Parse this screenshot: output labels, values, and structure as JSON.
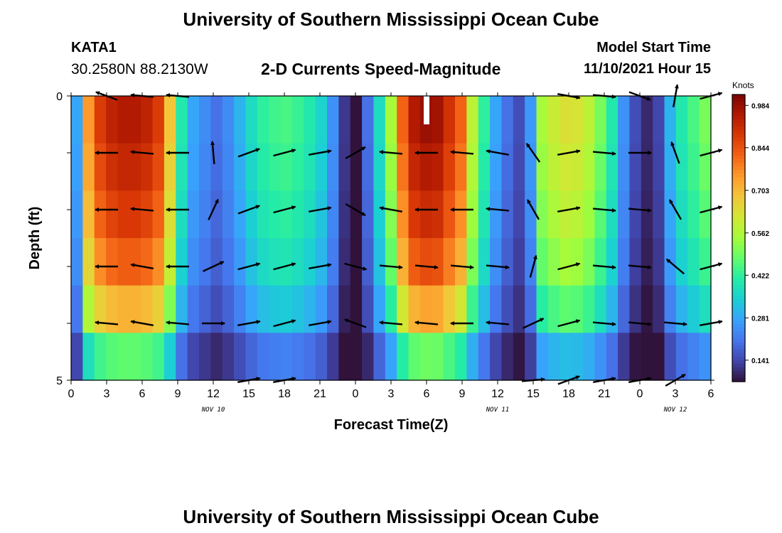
{
  "header": {
    "title": "University of Southern Mississippi Ocean Cube",
    "station": "KATA1",
    "coords": "30.2580N  88.2130W",
    "subtitle": "2-D Currents Speed-Magnitude",
    "model_start_label": "Model Start Time",
    "model_start_value": "11/10/2021 Hour 15"
  },
  "footer": {
    "title": "University of Southern Mississippi Ocean Cube"
  },
  "chart_data": {
    "type": "heatmap",
    "xlabel": "Forecast Time(Z)",
    "ylabel": "Depth (ft)",
    "x_tick_labels": [
      "0",
      "3",
      "6",
      "9",
      "12",
      "15",
      "18",
      "21",
      "0",
      "3",
      "6",
      "9",
      "12",
      "15",
      "18",
      "21",
      "0",
      "3",
      "6"
    ],
    "date_labels": [
      {
        "label": "NOV 10",
        "at_hour": 12
      },
      {
        "label": "NOV 11",
        "at_hour": 36
      },
      {
        "label": "NOV 12",
        "at_hour": 51
      }
    ],
    "xlim": [
      0,
      54
    ],
    "y_tick_labels": [
      {
        "value": 0,
        "label": "0"
      },
      {
        "value": 5,
        "label": "5"
      }
    ],
    "ylim": [
      0,
      5
    ],
    "colorbar": {
      "label": "Knots",
      "ticks": [
        0.141,
        0.281,
        0.422,
        0.562,
        0.703,
        0.844,
        0.984
      ],
      "range": [
        0.07,
        1.02
      ],
      "colors": [
        "#30123b",
        "#4145ab",
        "#4675ed",
        "#39a2fc",
        "#1bcfd4",
        "#24eca6",
        "#61fc6c",
        "#a4fc3b",
        "#d1e834",
        "#f3c63a",
        "#fe9b2d",
        "#f36315",
        "#d93806",
        "#b11901",
        "#7a0403"
      ]
    },
    "speed_by_hour": [
      0.28,
      0.75,
      0.88,
      0.93,
      0.95,
      0.95,
      0.93,
      0.88,
      0.68,
      0.4,
      0.28,
      0.24,
      0.2,
      0.24,
      0.3,
      0.37,
      0.42,
      0.44,
      0.45,
      0.43,
      0.4,
      0.35,
      0.25,
      0.12,
      0.07,
      0.2,
      0.37,
      0.55,
      0.82,
      0.95,
      0.98,
      0.97,
      0.9,
      0.82,
      0.58,
      0.42,
      0.28,
      0.2,
      0.15,
      0.26,
      0.55,
      0.6,
      0.63,
      0.62,
      0.58,
      0.5,
      0.4,
      0.25,
      0.15,
      0.1,
      0.14,
      0.3,
      0.4,
      0.45,
      0.5
    ],
    "depth_factors": [
      1.0,
      0.97,
      0.93,
      0.87,
      0.75,
      0.5
    ],
    "vector_hours": [
      3,
      6,
      9,
      12,
      15,
      18,
      21,
      24,
      27,
      30,
      33,
      36,
      39,
      42,
      45,
      48,
      51,
      54
    ],
    "vector_depths": [
      0,
      1,
      2,
      3,
      4,
      5
    ],
    "vector_angles": [
      [
        200,
        185,
        185,
        null,
        null,
        null,
        null,
        null,
        null,
        null,
        null,
        null,
        null,
        10,
        5,
        20,
        -80,
        -15
      ],
      [
        180,
        185,
        180,
        -95,
        -20,
        -15,
        -10,
        -30,
        185,
        180,
        185,
        190,
        -125,
        -10,
        5,
        0,
        -110,
        -15
      ],
      [
        180,
        185,
        180,
        -65,
        -20,
        -15,
        -10,
        30,
        190,
        180,
        180,
        185,
        -120,
        -10,
        5,
        5,
        -120,
        -15
      ],
      [
        180,
        190,
        180,
        -25,
        -15,
        -15,
        -10,
        15,
        5,
        5,
        5,
        5,
        -75,
        -15,
        5,
        5,
        -140,
        -15
      ],
      [
        185,
        190,
        185,
        0,
        -10,
        -15,
        -10,
        200,
        185,
        185,
        180,
        185,
        -25,
        -15,
        5,
        5,
        5,
        -10
      ],
      [
        null,
        null,
        null,
        null,
        -10,
        -10,
        null,
        null,
        null,
        null,
        null,
        null,
        -5,
        -20,
        -10,
        -10,
        -30,
        null
      ]
    ]
  }
}
